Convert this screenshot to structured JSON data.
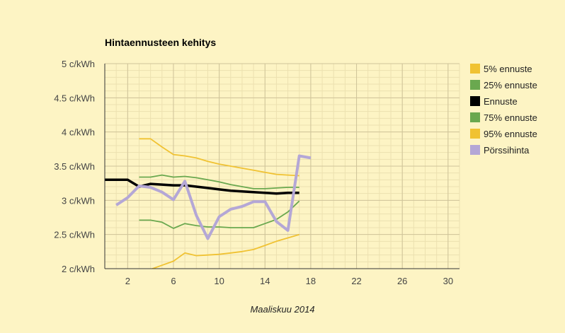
{
  "chart_data": {
    "type": "line",
    "title": "Hintaennusteen kehitys",
    "xlabel": "Maaliskuu 2014",
    "ylabel": "",
    "xlim": [
      0,
      31
    ],
    "ylim": [
      2,
      5
    ],
    "x_ticks": [
      2,
      6,
      10,
      14,
      18,
      22,
      26,
      30
    ],
    "y_ticks": [
      {
        "value": 2,
        "label": "2 c/kWh"
      },
      {
        "value": 2.5,
        "label": "2.5 c/kWh"
      },
      {
        "value": 3,
        "label": "3 c/kWh"
      },
      {
        "value": 3.5,
        "label": "3.5 c/kWh"
      },
      {
        "value": 4,
        "label": "4 c/kWh"
      },
      {
        "value": 4.5,
        "label": "4.5 c/kWh"
      },
      {
        "value": 5,
        "label": "5 c/kWh"
      }
    ],
    "grid": true,
    "legend_position": "right",
    "series": [
      {
        "name": "5% ennuste",
        "color": "#f0c232",
        "width": 1.8,
        "x": [
          3,
          4,
          5,
          6,
          7,
          8,
          9,
          10,
          11,
          12,
          13,
          14,
          15,
          16,
          17
        ],
        "y": [
          1.95,
          1.99,
          2.05,
          2.11,
          2.23,
          2.19,
          2.2,
          2.21,
          2.23,
          2.25,
          2.28,
          2.34,
          2.4,
          2.45,
          2.5
        ]
      },
      {
        "name": "25% ennuste",
        "color": "#6aa84f",
        "width": 1.8,
        "x": [
          3,
          4,
          5,
          6,
          7,
          8,
          9,
          10,
          11,
          12,
          13,
          14,
          15,
          16,
          17
        ],
        "y": [
          2.71,
          2.71,
          2.68,
          2.59,
          2.66,
          2.63,
          2.61,
          2.61,
          2.6,
          2.6,
          2.6,
          2.66,
          2.72,
          2.83,
          2.99
        ]
      },
      {
        "name": "Ennuste",
        "color": "#000000",
        "width": 3.5,
        "x": [
          0,
          1,
          2,
          3,
          4,
          5,
          6,
          7,
          8,
          9,
          10,
          11,
          12,
          13,
          14,
          15,
          16,
          17
        ],
        "y": [
          3.3,
          3.3,
          3.3,
          3.2,
          3.24,
          3.23,
          3.22,
          3.22,
          3.2,
          3.18,
          3.16,
          3.14,
          3.13,
          3.12,
          3.11,
          3.1,
          3.11,
          3.11
        ]
      },
      {
        "name": "75% ennuste",
        "color": "#6aa84f",
        "width": 1.8,
        "x": [
          3,
          4,
          5,
          6,
          7,
          8,
          9,
          10,
          11,
          12,
          13,
          14,
          15,
          16,
          17
        ],
        "y": [
          3.34,
          3.34,
          3.37,
          3.34,
          3.35,
          3.33,
          3.3,
          3.27,
          3.23,
          3.2,
          3.17,
          3.17,
          3.18,
          3.19,
          3.19
        ]
      },
      {
        "name": "95% ennuste",
        "color": "#f0c232",
        "width": 1.8,
        "x": [
          3,
          4,
          5,
          6,
          7,
          8,
          9,
          10,
          11,
          12,
          13,
          14,
          15,
          16,
          17
        ],
        "y": [
          3.9,
          3.9,
          3.78,
          3.67,
          3.65,
          3.62,
          3.57,
          3.53,
          3.5,
          3.47,
          3.44,
          3.41,
          3.38,
          3.37,
          3.36
        ]
      },
      {
        "name": "Pörssihinta",
        "color": "#b4a7d6",
        "width": 4,
        "x": [
          1,
          2,
          3,
          4,
          5,
          6,
          7,
          8,
          9,
          10,
          11,
          12,
          13,
          14,
          15,
          16,
          17,
          18
        ],
        "y": [
          2.93,
          3.04,
          3.21,
          3.19,
          3.12,
          3.01,
          3.28,
          2.78,
          2.44,
          2.76,
          2.87,
          2.91,
          2.98,
          2.98,
          2.69,
          2.56,
          3.65,
          3.62
        ]
      }
    ]
  }
}
